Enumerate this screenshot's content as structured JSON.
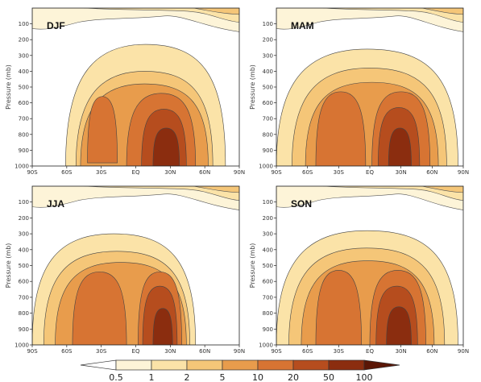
{
  "chart_data": {
    "type": "heatmap",
    "ylabel": "Pressure (mb)",
    "y_ticks": [
      "100",
      "200",
      "300",
      "400",
      "500",
      "600",
      "700",
      "800",
      "900",
      "1000"
    ],
    "x_ticks": [
      "90S",
      "60S",
      "30S",
      "EQ",
      "30N",
      "60N",
      "90N"
    ],
    "ylim": [
      1000,
      0
    ],
    "xlim": [
      "90S",
      "90N"
    ],
    "colorbar": {
      "labels": [
        "0.5",
        "1",
        "2",
        "5",
        "10",
        "20",
        "50",
        "100"
      ],
      "colors": [
        "#ffffff",
        "#fdf4d8",
        "#fbe3a8",
        "#f5c678",
        "#e89c4c",
        "#d77433",
        "#b64d1e",
        "#8b2d0f",
        "#5a1606"
      ]
    },
    "panels": [
      {
        "name": "DJF",
        "levels": [
          {
            "x0": -61,
            "x1": 78,
            "t0": 290,
            "t1": 230,
            "b": 1000
          },
          {
            "x0": -52,
            "x1": 67,
            "t0": 460,
            "t1": 400,
            "b": 1000
          },
          {
            "x0": -48,
            "x1": 63,
            "t0": 520,
            "t1": 480,
            "b": 1000
          },
          {
            "x0": -42,
            "x1": -16,
            "t0": 560,
            "t1": 560,
            "b": 980
          },
          {
            "x0": -8,
            "x1": 52,
            "t0": 560,
            "t1": 540,
            "b": 1000
          },
          {
            "x0": 5,
            "x1": 44,
            "t0": 640,
            "t1": 640,
            "b": 1000
          },
          {
            "x0": 15,
            "x1": 38,
            "t0": 760,
            "t1": 760,
            "b": 1000
          }
        ]
      },
      {
        "name": "MAM",
        "levels": [
          {
            "x0": -90,
            "x1": 85,
            "t0": 310,
            "t1": 260,
            "b": 1000
          },
          {
            "x0": -75,
            "x1": 74,
            "t0": 420,
            "t1": 380,
            "b": 1000
          },
          {
            "x0": -62,
            "x1": 66,
            "t0": 480,
            "t1": 470,
            "b": 1000
          },
          {
            "x0": -52,
            "x1": -4,
            "t0": 530,
            "t1": 530,
            "b": 1000
          },
          {
            "x0": 2,
            "x1": 58,
            "t0": 530,
            "t1": 530,
            "b": 1000
          },
          {
            "x0": 8,
            "x1": 48,
            "t0": 630,
            "t1": 630,
            "b": 1000
          },
          {
            "x0": 18,
            "x1": 40,
            "t0": 760,
            "t1": 760,
            "b": 1000
          }
        ]
      },
      {
        "name": "JJA",
        "levels": [
          {
            "x0": -90,
            "x1": 52,
            "t0": 330,
            "t1": 300,
            "b": 1000
          },
          {
            "x0": -80,
            "x1": 47,
            "t0": 430,
            "t1": 410,
            "b": 1000
          },
          {
            "x0": -70,
            "x1": 44,
            "t0": 490,
            "t1": 480,
            "b": 1000
          },
          {
            "x0": -55,
            "x1": -8,
            "t0": 540,
            "t1": 540,
            "b": 1000
          },
          {
            "x0": 2,
            "x1": 40,
            "t0": 540,
            "t1": 540,
            "b": 1000
          },
          {
            "x0": 6,
            "x1": 36,
            "t0": 630,
            "t1": 630,
            "b": 1000
          },
          {
            "x0": 15,
            "x1": 32,
            "t0": 770,
            "t1": 770,
            "b": 1000
          }
        ]
      },
      {
        "name": "SON",
        "levels": [
          {
            "x0": -90,
            "x1": 85,
            "t0": 320,
            "t1": 280,
            "b": 1000
          },
          {
            "x0": -78,
            "x1": 72,
            "t0": 420,
            "t1": 390,
            "b": 1000
          },
          {
            "x0": -66,
            "x1": 62,
            "t0": 480,
            "t1": 470,
            "b": 1000
          },
          {
            "x0": -52,
            "x1": -8,
            "t0": 530,
            "t1": 530,
            "b": 1000
          },
          {
            "x0": 0,
            "x1": 54,
            "t0": 530,
            "t1": 530,
            "b": 1000
          },
          {
            "x0": 6,
            "x1": 46,
            "t0": 630,
            "t1": 630,
            "b": 1000
          },
          {
            "x0": 16,
            "x1": 40,
            "t0": 760,
            "t1": 760,
            "b": 1000
          }
        ]
      }
    ]
  }
}
